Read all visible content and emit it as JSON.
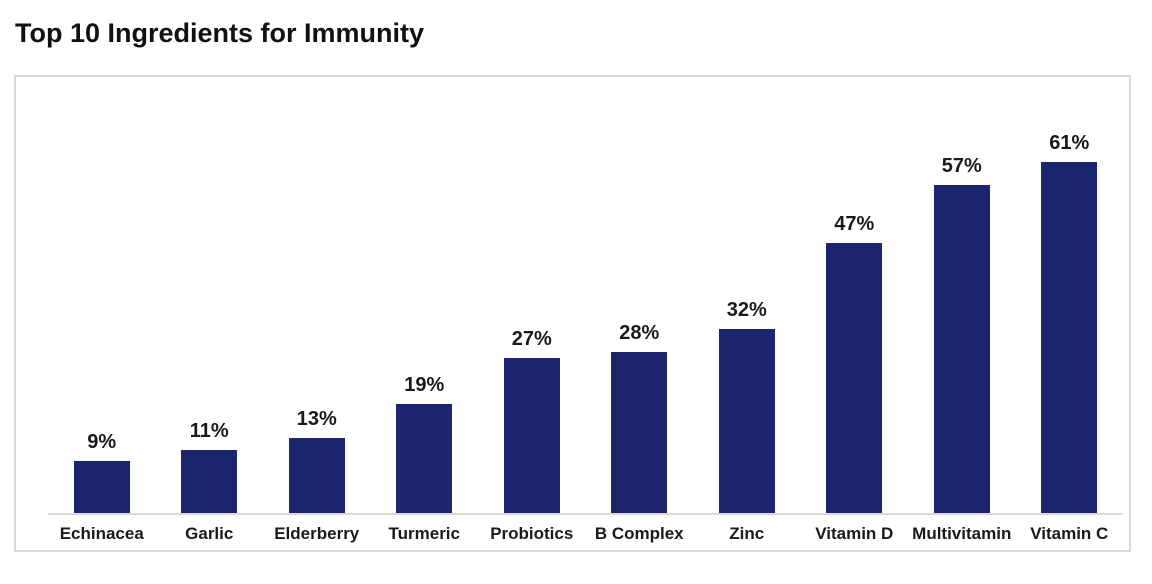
{
  "page": {
    "title": "Top 10 Ingredients for Immunity"
  },
  "chart_data": {
    "type": "bar",
    "title": "Top 10 Ingredients for Immunity",
    "categories": [
      "Echinacea",
      "Garlic",
      "Elderberry",
      "Turmeric",
      "Probiotics",
      "B Complex",
      "Zinc",
      "Vitamin D",
      "Multivitamin",
      "Vitamin C"
    ],
    "values": [
      9,
      11,
      13,
      19,
      27,
      28,
      32,
      47,
      57,
      61
    ],
    "value_labels": [
      "9%",
      "11%",
      "13%",
      "19%",
      "27%",
      "28%",
      "32%",
      "47%",
      "57%",
      "61%"
    ],
    "unit": "%",
    "xlabel": "",
    "ylabel": "",
    "ylim": [
      0,
      70
    ],
    "grid": false,
    "legend": false,
    "orientation": "vertical",
    "colors": {
      "bar": "#1c246e",
      "axis_line": "#d9d9d9",
      "box_border": "#d9d9d9",
      "label_text": "#1a1a1a",
      "title_text": "#111111",
      "background": "#ffffff"
    }
  }
}
